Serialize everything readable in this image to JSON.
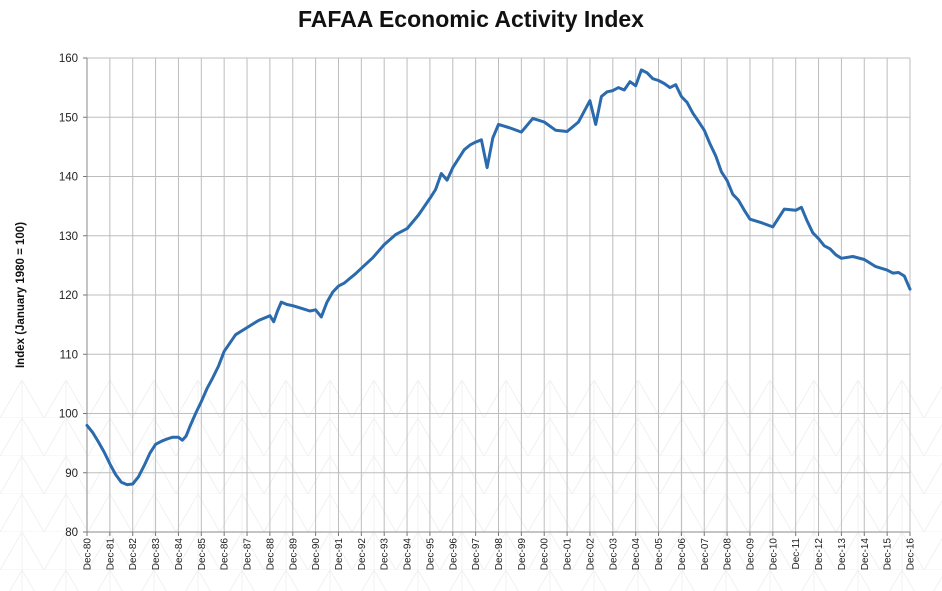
{
  "chart_data": {
    "type": "line",
    "title": "FAFAA Economic Activity Index",
    "xlabel": "",
    "ylabel": "Index (January 1980 = 100)",
    "ylim": [
      80,
      160
    ],
    "yticks": [
      80,
      90,
      100,
      110,
      120,
      130,
      140,
      150,
      160
    ],
    "xlim": [
      "Dec-80",
      "Dec-16"
    ],
    "xticks": [
      "Dec-80",
      "Dec-81",
      "Dec-82",
      "Dec-83",
      "Dec-84",
      "Dec-85",
      "Dec-86",
      "Dec-87",
      "Dec-88",
      "Dec-89",
      "Dec-90",
      "Dec-91",
      "Dec-92",
      "Dec-93",
      "Dec-94",
      "Dec-95",
      "Dec-96",
      "Dec-97",
      "Dec-98",
      "Dec-99",
      "Dec-00",
      "Dec-01",
      "Dec-02",
      "Dec-03",
      "Dec-04",
      "Dec-05",
      "Dec-06",
      "Dec-07",
      "Dec-08",
      "Dec-09",
      "Dec-10",
      "Dec-11",
      "Dec-12",
      "Dec-13",
      "Dec-14",
      "Dec-15",
      "Dec-16"
    ],
    "grid": "vertical and horizontal",
    "legend": "none",
    "line_color": "#2a6aad",
    "series": [
      {
        "x": [
          "Dec-80",
          "Mar-81",
          "Jun-81",
          "Sep-81",
          "Dec-81",
          "Mar-82",
          "Jun-82",
          "Sep-82",
          "Dec-82",
          "Mar-83",
          "Jun-83",
          "Sep-83",
          "Dec-83",
          "Mar-84",
          "Jun-84",
          "Sep-84",
          "Dec-84",
          "Feb-85",
          "Apr-85",
          "Jun-85",
          "Sep-85",
          "Dec-85",
          "Mar-86",
          "Jun-86",
          "Sep-86",
          "Dec-86",
          "Jun-87",
          "Dec-87",
          "Jun-88",
          "Dec-88",
          "Feb-89",
          "Apr-89",
          "Jun-89",
          "Sep-89",
          "Dec-89",
          "Jun-90",
          "Sep-90",
          "Dec-90",
          "Mar-91",
          "Jun-91",
          "Sep-91",
          "Dec-91",
          "Mar-92",
          "Jun-92",
          "Sep-92",
          "Dec-92",
          "Jun-93",
          "Dec-93",
          "Jun-94",
          "Dec-94",
          "Jun-95",
          "Dec-95",
          "Mar-96",
          "Jun-96",
          "Sep-96",
          "Dec-96",
          "Mar-97",
          "Jun-97",
          "Sep-97",
          "Dec-97",
          "Mar-98",
          "Jun-98",
          "Sep-98",
          "Dec-98",
          "Jun-99",
          "Dec-99",
          "Jun-00",
          "Dec-00",
          "Jun-01",
          "Dec-01",
          "Jun-02",
          "Sep-02",
          "Dec-02",
          "Mar-03",
          "Jun-03",
          "Sep-03",
          "Dec-03",
          "Mar-04",
          "Jun-04",
          "Sep-04",
          "Dec-04",
          "Mar-05",
          "Jun-05",
          "Sep-05",
          "Dec-05",
          "Mar-06",
          "Jun-06",
          "Sep-06",
          "Dec-06",
          "Mar-07",
          "Jun-07",
          "Sep-07",
          "Dec-07",
          "Mar-08",
          "Jun-08",
          "Sep-08",
          "Dec-08",
          "Mar-09",
          "Jun-09",
          "Sep-09",
          "Dec-09",
          "Jun-10",
          "Dec-10",
          "Jun-11",
          "Dec-11",
          "Mar-12",
          "Jun-12",
          "Sep-12",
          "Dec-12",
          "Mar-13",
          "Jun-13",
          "Sep-13",
          "Dec-13",
          "Jun-14",
          "Dec-14",
          "Jun-15",
          "Dec-15",
          "Mar-16",
          "Jun-16",
          "Sep-16",
          "Dec-16"
        ],
        "values": [
          98,
          96.8,
          95.2,
          93.5,
          91.5,
          89.7,
          88.4,
          88.0,
          88.1,
          89.3,
          91.2,
          93.3,
          94.8,
          95.3,
          95.7,
          96.0,
          96.0,
          95.5,
          96.2,
          97.8,
          100.0,
          102.0,
          104.2,
          106.0,
          108.0,
          110.5,
          113.3,
          114.5,
          115.7,
          116.5,
          115.5,
          117.3,
          118.8,
          118.4,
          118.2,
          117.6,
          117.3,
          117.5,
          116.3,
          118.8,
          120.5,
          121.5,
          122.0,
          122.8,
          123.6,
          124.5,
          126.3,
          128.5,
          130.2,
          131.2,
          133.5,
          136.3,
          137.8,
          140.5,
          139.4,
          141.5,
          143.0,
          144.5,
          145.3,
          145.8,
          146.2,
          141.5,
          146.5,
          148.8,
          148.2,
          147.5,
          149.8,
          149.2,
          147.8,
          147.6,
          149.2,
          151.0,
          152.8,
          148.8,
          153.5,
          154.3,
          154.5,
          155.0,
          154.6,
          156.0,
          155.3,
          158.0,
          157.5,
          156.5,
          156.2,
          155.7,
          155.0,
          155.5,
          153.5,
          152.5,
          150.7,
          149.3,
          147.8,
          145.5,
          143.5,
          140.8,
          139.3,
          137.0,
          136.0,
          134.3,
          132.8,
          132.2,
          131.5,
          134.5,
          134.3,
          134.8,
          132.5,
          130.5,
          129.5,
          128.3,
          127.8,
          126.8,
          126.2,
          126.5,
          126.0,
          124.8,
          124.2,
          123.7,
          123.8,
          123.2,
          121.0
        ]
      }
    ]
  }
}
